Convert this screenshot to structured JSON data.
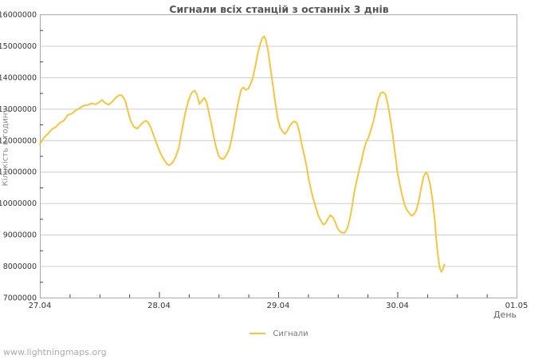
{
  "page": {
    "watermark": "www.lightningmaps.org"
  },
  "chart": {
    "title": "Сигнали всіх станцій з останніх 3 днів",
    "x_axis_title": "День",
    "y_axis_title": "Кількість в годину",
    "legend_label": "Сигнали"
  },
  "colors": {
    "line": "#F5C542",
    "grid": "#CCCCCC",
    "border": "#AAAAAA",
    "tick": "#666666",
    "tick_text": "#333333",
    "background": "#FFFFFF"
  },
  "chart_data": {
    "type": "line",
    "title": "Сигнали всіх станцій з останніх 3 днів",
    "xlabel": "День",
    "ylabel": "Кількість в годину",
    "grid": "horizontal",
    "legend_position": "bottom-center",
    "xlim": [
      0,
      4
    ],
    "ylim": [
      7000000,
      16000000
    ],
    "x_minor_step": 0.25,
    "y_minor_step": 500000,
    "x_ticks": [
      {
        "pos": 0,
        "label": "27.04"
      },
      {
        "pos": 1,
        "label": "28.04"
      },
      {
        "pos": 2,
        "label": "29.04"
      },
      {
        "pos": 3,
        "label": "30.04"
      },
      {
        "pos": 4,
        "label": "01.05"
      }
    ],
    "y_ticks": [
      {
        "value": 7000000,
        "label": "7000000"
      },
      {
        "value": 8000000,
        "label": "8000000"
      },
      {
        "value": 9000000,
        "label": "9000000"
      },
      {
        "value": 10000000,
        "label": "10000000"
      },
      {
        "value": 11000000,
        "label": "11000000"
      },
      {
        "value": 12000000,
        "label": "12000000"
      },
      {
        "value": 13000000,
        "label": "13000000"
      },
      {
        "value": 14000000,
        "label": "14000000"
      },
      {
        "value": 15000000,
        "label": "15000000"
      },
      {
        "value": 16000000,
        "label": "16000000"
      }
    ],
    "series": [
      {
        "name": "Сигнали",
        "color": "#F5C542",
        "x_unit": "days_after_27.04",
        "points": [
          [
            0.0,
            11870000
          ],
          [
            0.033,
            12080000
          ],
          [
            0.067,
            12200000
          ],
          [
            0.1,
            12350000
          ],
          [
            0.134,
            12420000
          ],
          [
            0.167,
            12550000
          ],
          [
            0.201,
            12620000
          ],
          [
            0.234,
            12800000
          ],
          [
            0.268,
            12850000
          ],
          [
            0.301,
            12950000
          ],
          [
            0.335,
            13020000
          ],
          [
            0.368,
            13100000
          ],
          [
            0.402,
            13120000
          ],
          [
            0.435,
            13170000
          ],
          [
            0.469,
            13140000
          ],
          [
            0.502,
            13220000
          ],
          [
            0.522,
            13280000
          ],
          [
            0.549,
            13180000
          ],
          [
            0.576,
            13130000
          ],
          [
            0.603,
            13200000
          ],
          [
            0.636,
            13350000
          ],
          [
            0.67,
            13440000
          ],
          [
            0.69,
            13420000
          ],
          [
            0.717,
            13250000
          ],
          [
            0.737,
            12950000
          ],
          [
            0.763,
            12600000
          ],
          [
            0.79,
            12420000
          ],
          [
            0.817,
            12370000
          ],
          [
            0.844,
            12480000
          ],
          [
            0.871,
            12580000
          ],
          [
            0.891,
            12620000
          ],
          [
            0.911,
            12550000
          ],
          [
            0.931,
            12400000
          ],
          [
            0.958,
            12120000
          ],
          [
            0.984,
            11850000
          ],
          [
            1.011,
            11600000
          ],
          [
            1.038,
            11400000
          ],
          [
            1.065,
            11250000
          ],
          [
            1.085,
            11200000
          ],
          [
            1.112,
            11280000
          ],
          [
            1.138,
            11450000
          ],
          [
            1.165,
            11750000
          ],
          [
            1.192,
            12300000
          ],
          [
            1.219,
            12850000
          ],
          [
            1.246,
            13250000
          ],
          [
            1.272,
            13500000
          ],
          [
            1.299,
            13580000
          ],
          [
            1.319,
            13450000
          ],
          [
            1.339,
            13150000
          ],
          [
            1.359,
            13250000
          ],
          [
            1.38,
            13350000
          ],
          [
            1.4,
            13200000
          ],
          [
            1.42,
            12850000
          ],
          [
            1.44,
            12500000
          ],
          [
            1.46,
            12100000
          ],
          [
            1.48,
            11750000
          ],
          [
            1.5,
            11500000
          ],
          [
            1.52,
            11420000
          ],
          [
            1.54,
            11400000
          ],
          [
            1.56,
            11500000
          ],
          [
            1.587,
            11700000
          ],
          [
            1.607,
            12000000
          ],
          [
            1.627,
            12400000
          ],
          [
            1.647,
            12850000
          ],
          [
            1.667,
            13250000
          ],
          [
            1.688,
            13600000
          ],
          [
            1.708,
            13680000
          ],
          [
            1.728,
            13600000
          ],
          [
            1.748,
            13630000
          ],
          [
            1.768,
            13780000
          ],
          [
            1.788,
            14000000
          ],
          [
            1.808,
            14350000
          ],
          [
            1.828,
            14750000
          ],
          [
            1.848,
            15050000
          ],
          [
            1.868,
            15260000
          ],
          [
            1.882,
            15300000
          ],
          [
            1.895,
            15200000
          ],
          [
            1.915,
            14850000
          ],
          [
            1.935,
            14300000
          ],
          [
            1.955,
            13750000
          ],
          [
            1.975,
            13200000
          ],
          [
            1.996,
            12700000
          ],
          [
            2.016,
            12400000
          ],
          [
            2.036,
            12280000
          ],
          [
            2.056,
            12200000
          ],
          [
            2.076,
            12300000
          ],
          [
            2.096,
            12450000
          ],
          [
            2.116,
            12550000
          ],
          [
            2.136,
            12600000
          ],
          [
            2.156,
            12550000
          ],
          [
            2.176,
            12300000
          ],
          [
            2.196,
            11900000
          ],
          [
            2.217,
            11550000
          ],
          [
            2.237,
            11200000
          ],
          [
            2.257,
            10750000
          ],
          [
            2.277,
            10400000
          ],
          [
            2.297,
            10100000
          ],
          [
            2.317,
            9850000
          ],
          [
            2.337,
            9600000
          ],
          [
            2.357,
            9450000
          ],
          [
            2.377,
            9320000
          ],
          [
            2.397,
            9360000
          ],
          [
            2.417,
            9500000
          ],
          [
            2.438,
            9620000
          ],
          [
            2.458,
            9550000
          ],
          [
            2.478,
            9400000
          ],
          [
            2.498,
            9200000
          ],
          [
            2.518,
            9100000
          ],
          [
            2.538,
            9060000
          ],
          [
            2.558,
            9060000
          ],
          [
            2.578,
            9180000
          ],
          [
            2.598,
            9450000
          ],
          [
            2.618,
            9850000
          ],
          [
            2.638,
            10350000
          ],
          [
            2.658,
            10700000
          ],
          [
            2.679,
            11050000
          ],
          [
            2.699,
            11350000
          ],
          [
            2.719,
            11700000
          ],
          [
            2.739,
            11950000
          ],
          [
            2.759,
            12100000
          ],
          [
            2.779,
            12350000
          ],
          [
            2.799,
            12600000
          ],
          [
            2.819,
            12950000
          ],
          [
            2.839,
            13300000
          ],
          [
            2.859,
            13500000
          ],
          [
            2.879,
            13530000
          ],
          [
            2.9,
            13450000
          ],
          [
            2.92,
            13150000
          ],
          [
            2.94,
            12700000
          ],
          [
            2.96,
            12200000
          ],
          [
            2.98,
            11600000
          ],
          [
            3.0,
            11000000
          ],
          [
            3.02,
            10600000
          ],
          [
            3.04,
            10250000
          ],
          [
            3.06,
            9950000
          ],
          [
            3.08,
            9780000
          ],
          [
            3.1,
            9680000
          ],
          [
            3.12,
            9600000
          ],
          [
            3.141,
            9650000
          ],
          [
            3.161,
            9800000
          ],
          [
            3.181,
            10100000
          ],
          [
            3.201,
            10500000
          ],
          [
            3.221,
            10850000
          ],
          [
            3.241,
            10980000
          ],
          [
            3.255,
            10900000
          ],
          [
            3.275,
            10600000
          ],
          [
            3.295,
            10100000
          ],
          [
            3.315,
            9400000
          ],
          [
            3.328,
            8800000
          ],
          [
            3.342,
            8300000
          ],
          [
            3.355,
            7950000
          ],
          [
            3.368,
            7820000
          ],
          [
            3.382,
            7900000
          ],
          [
            3.395,
            8050000
          ]
        ]
      }
    ]
  }
}
